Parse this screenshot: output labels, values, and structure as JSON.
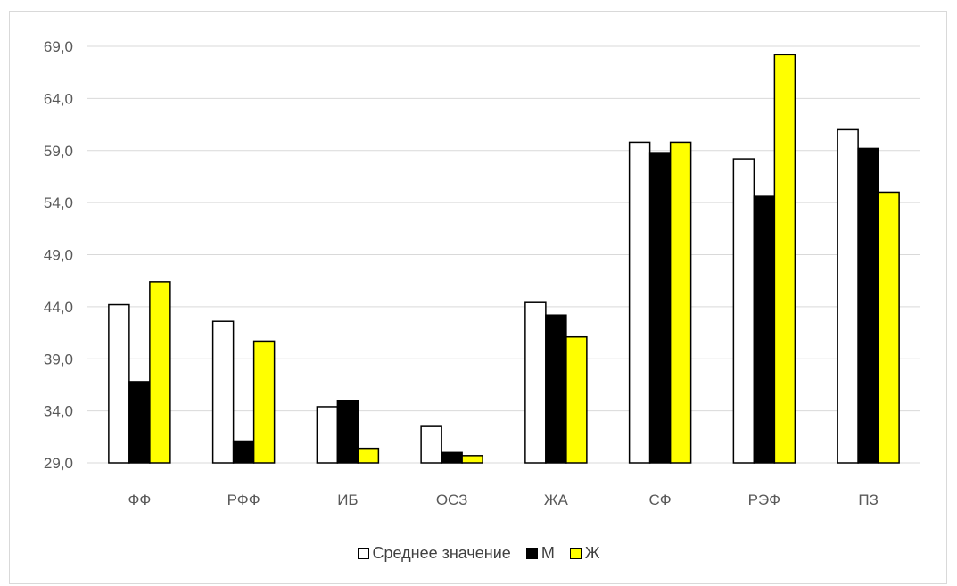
{
  "chart_data": {
    "type": "bar",
    "categories": [
      "ФФ",
      "РФФ",
      "ИБ",
      "ОСЗ",
      "ЖА",
      "СФ",
      "РЭФ",
      "ПЗ"
    ],
    "series": [
      {
        "name": "Среднее значение",
        "color": "#ffffff",
        "values": [
          44.2,
          42.6,
          34.4,
          32.5,
          44.4,
          59.8,
          58.2,
          61.0
        ]
      },
      {
        "name": "М",
        "color": "#000000",
        "values": [
          36.8,
          31.1,
          35.0,
          30.0,
          43.2,
          58.8,
          54.6,
          59.2
        ]
      },
      {
        "name": "Ж",
        "color": "#ffff00",
        "values": [
          46.4,
          40.7,
          30.4,
          29.7,
          41.1,
          59.8,
          68.2,
          55.0
        ]
      }
    ],
    "yticks": [
      "29,0",
      "34,0",
      "39,0",
      "44,0",
      "49,0",
      "54,0",
      "59,0",
      "64,0",
      "69,0"
    ],
    "ylim": [
      29,
      69
    ],
    "grid": true,
    "legend_position": "bottom"
  }
}
